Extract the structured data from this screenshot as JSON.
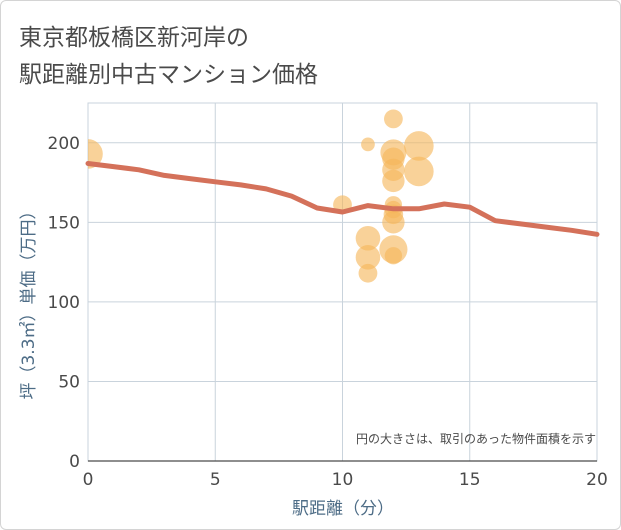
{
  "title": {
    "line1": "東京都板橋区新河岸の",
    "line2": "駅距離別中古マンション価格"
  },
  "colors": {
    "bubble": "#f5b75a",
    "line": "#d4715a",
    "grid": "#c9d3dc",
    "axis_label": "#4d6c86"
  },
  "chart_data": {
    "type": "scatter",
    "title": "東京都板橋区新河岸の駅距離別中古マンション価格",
    "xlabel": "駅距離（分）",
    "ylabel": "坪（3.3㎡）単価（万円）",
    "xlim": [
      0,
      20
    ],
    "ylim": [
      0,
      225
    ],
    "xticks": [
      0,
      5,
      10,
      15,
      20
    ],
    "yticks": [
      0,
      50,
      100,
      150,
      200
    ],
    "grid": true,
    "note": "円の大きさは、取引のあった物件面積を示す",
    "bubbles": [
      {
        "x": 0,
        "y": 193,
        "size": 3
      },
      {
        "x": 10,
        "y": 161,
        "size": 1.5
      },
      {
        "x": 11,
        "y": 199,
        "size": 0.8
      },
      {
        "x": 11,
        "y": 140,
        "size": 2.3
      },
      {
        "x": 11,
        "y": 128,
        "size": 2.3
      },
      {
        "x": 11,
        "y": 118,
        "size": 1.5
      },
      {
        "x": 12,
        "y": 215,
        "size": 1.5
      },
      {
        "x": 12,
        "y": 194,
        "size": 2.5
      },
      {
        "x": 12,
        "y": 190,
        "size": 2.0
      },
      {
        "x": 12,
        "y": 183,
        "size": 2.0
      },
      {
        "x": 12,
        "y": 176,
        "size": 2.0
      },
      {
        "x": 12,
        "y": 161,
        "size": 1.3
      },
      {
        "x": 12,
        "y": 158,
        "size": 1.3
      },
      {
        "x": 12,
        "y": 155,
        "size": 1.6
      },
      {
        "x": 12,
        "y": 150,
        "size": 2.0
      },
      {
        "x": 12,
        "y": 133,
        "size": 2.8
      },
      {
        "x": 12,
        "y": 129,
        "size": 1.3
      },
      {
        "x": 13,
        "y": 198,
        "size": 3.0
      },
      {
        "x": 13,
        "y": 182,
        "size": 3.0
      }
    ],
    "trend": {
      "x": [
        0,
        1,
        2,
        3,
        4,
        5,
        6,
        7,
        8,
        9,
        10,
        11,
        12,
        13,
        14,
        15,
        16,
        17,
        18,
        19,
        20
      ],
      "y": [
        187,
        185,
        183,
        179.5,
        177.5,
        175.5,
        173.5,
        171,
        166.5,
        159,
        156.5,
        160.5,
        158.5,
        158.5,
        161.5,
        159.5,
        151,
        149,
        147,
        145,
        142.5
      ]
    }
  }
}
